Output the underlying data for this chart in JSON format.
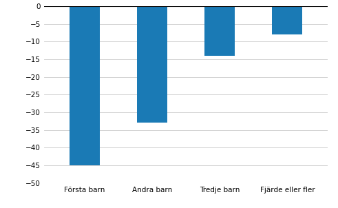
{
  "categories": [
    "Första barn",
    "Andra barn",
    "Tredje barn",
    "Fjärde eller fler"
  ],
  "values": [
    -45,
    -33,
    -14,
    -8
  ],
  "bar_color": "#1a7ab5",
  "ylim": [
    -50,
    0
  ],
  "yticks": [
    0,
    -5,
    -10,
    -15,
    -20,
    -25,
    -30,
    -35,
    -40,
    -45,
    -50
  ],
  "background_color": "#ffffff",
  "grid_color": "#cccccc",
  "bar_width": 0.45,
  "tick_fontsize": 7.5,
  "xlabel_fontsize": 7.5
}
